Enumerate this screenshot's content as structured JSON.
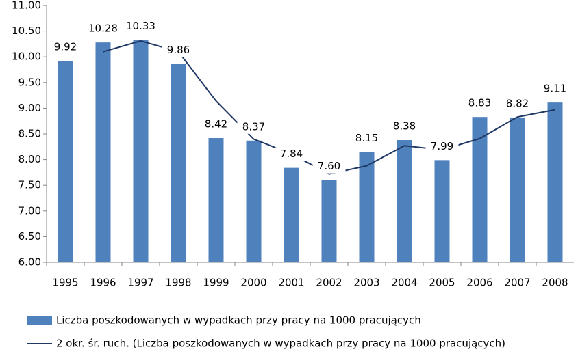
{
  "chart_data": {
    "type": "bar",
    "categories": [
      "1995",
      "1996",
      "1997",
      "1998",
      "1999",
      "2000",
      "2001",
      "2002",
      "2003",
      "2004",
      "2005",
      "2006",
      "2007",
      "2008"
    ],
    "series": [
      {
        "name": "Liczba poszkodowanych w wypadkach przy pracy na 1000 pracujących",
        "type": "bar",
        "color": "#4f81bd",
        "values": [
          9.92,
          10.28,
          10.33,
          9.86,
          8.42,
          8.37,
          7.84,
          7.6,
          8.15,
          8.38,
          7.99,
          8.83,
          8.82,
          9.11
        ],
        "value_labels": [
          "9.92",
          "10.28",
          "10.33",
          "9.86",
          "8.42",
          "8.37",
          "7.84",
          "7.60",
          "8.15",
          "8.38",
          "7.99",
          "8.83",
          "8.82",
          "9.11"
        ]
      },
      {
        "name": "2 okr. śr. ruch. (Liczba poszkodowanych w wypadkach przy pracy na 1000 pracujących)",
        "type": "line",
        "color": "#1f3864",
        "values": [
          null,
          10.1,
          10.31,
          10.1,
          9.14,
          8.4,
          8.11,
          7.72,
          7.88,
          8.27,
          8.19,
          8.41,
          8.83,
          8.97
        ]
      }
    ],
    "ylim": [
      6,
      11
    ],
    "yticks": [
      {
        "value": 6,
        "label": "6.00"
      },
      {
        "value": 6.5,
        "label": "6.50"
      },
      {
        "value": 7,
        "label": "7.00"
      },
      {
        "value": 7.5,
        "label": "7.50"
      },
      {
        "value": 8,
        "label": "8.00"
      },
      {
        "value": 8.5,
        "label": "8.50"
      },
      {
        "value": 9,
        "label": "9.00"
      },
      {
        "value": 9.5,
        "label": "9.50"
      },
      {
        "value": 10,
        "label": "10.00"
      },
      {
        "value": 10.5,
        "label": "10.50"
      },
      {
        "value": 11,
        "label": "11.00"
      }
    ],
    "grid": false,
    "legend": "bottom"
  }
}
